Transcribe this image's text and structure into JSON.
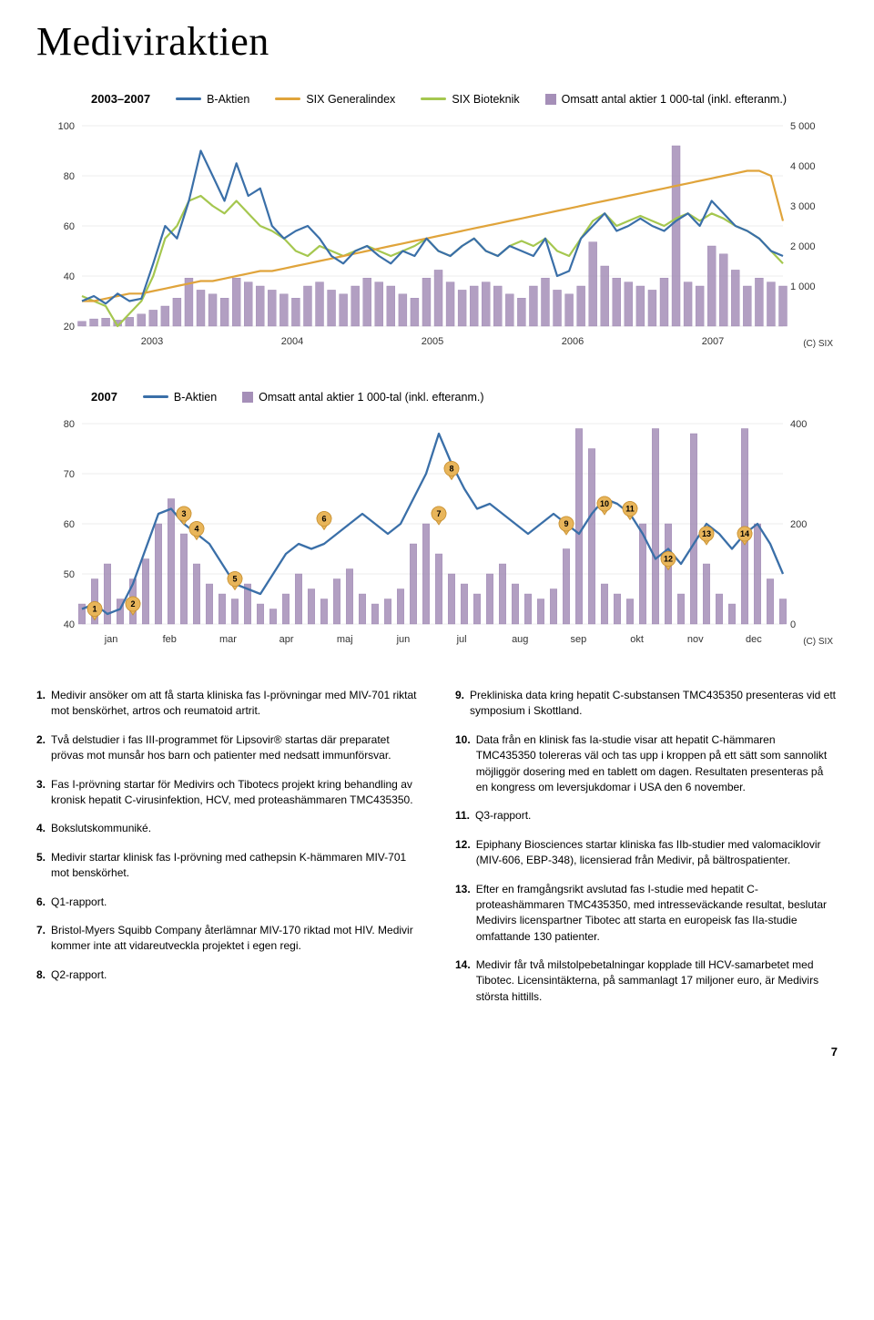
{
  "title": "Mediviraktien",
  "page_number": "7",
  "colors": {
    "bAktien": "#3a6fa8",
    "generalindex": "#e0a43b",
    "bioteknik": "#a5c74f",
    "bars": "#a58fb8",
    "barsStroke": "#8a6fa3",
    "gridline": "#dcdcdc",
    "text": "#222222"
  },
  "chart1": {
    "period_label": "2003–2007",
    "legend": [
      {
        "label": "B-Aktien",
        "type": "line",
        "color": "#3a6fa8"
      },
      {
        "label": "SIX Generalindex",
        "type": "line",
        "color": "#e0a43b"
      },
      {
        "label": "SIX Bioteknik",
        "type": "line",
        "color": "#a5c74f"
      },
      {
        "label": "Omsatt antal aktier 1 000-tal (inkl. efteranm.)",
        "type": "sq",
        "color": "#a58fb8"
      }
    ],
    "xlabels": [
      "2003",
      "2004",
      "2005",
      "2006",
      "2007"
    ],
    "y_left": {
      "min": 20,
      "max": 100,
      "ticks": [
        20,
        40,
        60,
        80,
        100
      ]
    },
    "y_right": {
      "min": 0,
      "max": 5000,
      "ticks": [
        1000,
        2000,
        3000,
        4000,
        5000
      ],
      "tick_labels": [
        "1 000",
        "2 000",
        "3 000",
        "4 000",
        "5 000"
      ]
    },
    "series_bAktien": [
      30,
      32,
      29,
      33,
      30,
      31,
      45,
      60,
      55,
      70,
      90,
      80,
      70,
      85,
      72,
      75,
      60,
      55,
      58,
      60,
      55,
      48,
      45,
      50,
      52,
      48,
      45,
      50,
      48,
      55,
      50,
      48,
      52,
      55,
      50,
      48,
      52,
      50,
      48,
      55,
      40,
      42,
      55,
      60,
      65,
      58,
      60,
      63,
      60,
      58,
      62,
      65,
      60,
      70,
      65,
      60,
      58,
      55,
      50,
      48
    ],
    "series_generalindex": [
      30,
      30,
      31,
      32,
      33,
      33,
      34,
      35,
      36,
      37,
      38,
      38,
      39,
      40,
      41,
      42,
      42,
      43,
      44,
      45,
      46,
      47,
      48,
      49,
      50,
      51,
      52,
      53,
      54,
      55,
      56,
      57,
      58,
      59,
      60,
      61,
      62,
      63,
      64,
      65,
      66,
      67,
      68,
      69,
      70,
      71,
      72,
      73,
      74,
      75,
      76,
      77,
      78,
      79,
      80,
      81,
      82,
      82,
      80,
      62
    ],
    "series_bioteknik": [
      32,
      30,
      28,
      20,
      25,
      30,
      40,
      55,
      60,
      70,
      72,
      68,
      65,
      70,
      65,
      60,
      58,
      55,
      50,
      48,
      52,
      50,
      48,
      50,
      52,
      50,
      48,
      50,
      52,
      55,
      50,
      48,
      52,
      55,
      50,
      48,
      52,
      54,
      52,
      55,
      50,
      48,
      55,
      62,
      65,
      60,
      62,
      64,
      62,
      60,
      63,
      65,
      62,
      65,
      63,
      60,
      58,
      55,
      50,
      45
    ],
    "bars": [
      120,
      180,
      200,
      150,
      220,
      300,
      400,
      500,
      700,
      1200,
      900,
      800,
      700,
      1200,
      1100,
      1000,
      900,
      800,
      700,
      1000,
      1100,
      900,
      800,
      1000,
      1200,
      1100,
      1000,
      800,
      700,
      1200,
      1400,
      1100,
      900,
      1000,
      1100,
      1000,
      800,
      700,
      1000,
      1200,
      900,
      800,
      1000,
      2100,
      1500,
      1200,
      1100,
      1000,
      900,
      1200,
      4500,
      1100,
      1000,
      2000,
      1800,
      1400,
      1000,
      1200,
      1100,
      1000
    ],
    "credit": "(C) SIX"
  },
  "chart2": {
    "period_label": "2007",
    "legend": [
      {
        "label": "B-Aktien",
        "type": "line",
        "color": "#3a6fa8"
      },
      {
        "label": "Omsatt antal aktier 1 000-tal (inkl. efteranm.)",
        "type": "sq",
        "color": "#a58fb8"
      }
    ],
    "y_left": {
      "min": 40,
      "max": 80,
      "ticks": [
        40,
        50,
        60,
        70,
        80
      ]
    },
    "y_right": {
      "min": 0,
      "max": 400,
      "ticks": [
        0,
        200,
        400
      ]
    },
    "xlabels": [
      "jan",
      "feb",
      "mar",
      "apr",
      "maj",
      "jun",
      "jul",
      "aug",
      "sep",
      "okt",
      "nov",
      "dec"
    ],
    "series_bAktien": [
      43,
      44,
      42,
      43,
      48,
      55,
      62,
      63,
      60,
      58,
      56,
      52,
      48,
      47,
      46,
      50,
      54,
      56,
      55,
      56,
      58,
      60,
      62,
      60,
      58,
      60,
      65,
      70,
      78,
      72,
      67,
      63,
      64,
      62,
      60,
      58,
      60,
      62,
      60,
      58,
      62,
      65,
      64,
      62,
      58,
      53,
      55,
      52,
      56,
      60,
      58,
      55,
      58,
      60,
      56,
      50
    ],
    "bars": [
      40,
      90,
      120,
      50,
      90,
      130,
      200,
      250,
      180,
      120,
      80,
      60,
      50,
      80,
      40,
      30,
      60,
      100,
      70,
      50,
      90,
      110,
      60,
      40,
      50,
      70,
      160,
      200,
      140,
      100,
      80,
      60,
      100,
      120,
      80,
      60,
      50,
      70,
      150,
      390,
      350,
      80,
      60,
      50,
      200,
      390,
      200,
      60,
      380,
      120,
      60,
      40,
      390,
      200,
      90,
      50
    ],
    "markers": [
      {
        "n": "1",
        "x": 1,
        "y": 43
      },
      {
        "n": "2",
        "x": 4,
        "y": 44
      },
      {
        "n": "3",
        "x": 8,
        "y": 62
      },
      {
        "n": "4",
        "x": 9,
        "y": 59
      },
      {
        "n": "5",
        "x": 12,
        "y": 49
      },
      {
        "n": "6",
        "x": 19,
        "y": 61
      },
      {
        "n": "7",
        "x": 28,
        "y": 62
      },
      {
        "n": "8",
        "x": 29,
        "y": 71
      },
      {
        "n": "9",
        "x": 38,
        "y": 60
      },
      {
        "n": "10",
        "x": 41,
        "y": 64
      },
      {
        "n": "11",
        "x": 43,
        "y": 63
      },
      {
        "n": "12",
        "x": 46,
        "y": 53
      },
      {
        "n": "13",
        "x": 49,
        "y": 58
      },
      {
        "n": "14",
        "x": 52,
        "y": 58
      }
    ],
    "credit": "(C) SIX"
  },
  "notes_left": [
    {
      "n": "1.",
      "t": "Medivir ansöker om att få starta kliniska fas I-prövningar med MIV-701 riktat mot benskörhet, artros och reumatoid artrit."
    },
    {
      "n": "2.",
      "t": "Två delstudier i fas III-programmet för Lipsovir® startas där preparatet prövas mot munsår hos barn och patienter med nedsatt immunförsvar."
    },
    {
      "n": "3.",
      "t": "Fas I-prövning startar för Medivirs och Tibotecs projekt kring behandling av kronisk hepatit C-virusinfektion, HCV, med proteashämmaren TMC435350."
    },
    {
      "n": "4.",
      "t": "Bokslutskommuniké."
    },
    {
      "n": "5.",
      "t": "Medivir startar klinisk fas I-prövning med cathepsin K-hämmaren MIV-701 mot benskörhet."
    },
    {
      "n": "6.",
      "t": "Q1-rapport."
    },
    {
      "n": "7.",
      "t": "Bristol-Myers Squibb Company återlämnar MIV-170 riktad mot HIV. Medivir kommer inte att vidareutveckla projektet i egen regi."
    },
    {
      "n": "8.",
      "t": "Q2-rapport."
    }
  ],
  "notes_right": [
    {
      "n": "9.",
      "t": "Prekliniska data kring hepatit C-substansen TMC435350 presenteras vid ett symposium i Skottland."
    },
    {
      "n": "10.",
      "t": "Data från en klinisk fas Ia-studie visar att hepatit C-hämmaren TMC435350 tolereras väl och tas upp i kroppen på ett sätt som sannolikt möjliggör dosering med en tablett om dagen. Resultaten presenteras på en kongress om leversjukdomar i USA den 6 november."
    },
    {
      "n": "11.",
      "t": "Q3-rapport."
    },
    {
      "n": "12.",
      "t": "Epiphany Biosciences startar kliniska fas IIb-studier med valomaciklovir (MIV-606, EBP-348), licensierad från Medivir, på bältrospatienter."
    },
    {
      "n": "13.",
      "t": "Efter en framgångsrikt avslutad fas I-studie med hepatit C-proteashämmaren TMC435350, med intresseväckande resultat, beslutar Medivirs licenspartner Tibotec att starta en europeisk fas IIa-studie omfattande 130 patienter."
    },
    {
      "n": "14.",
      "t": "Medivir får två milstolpebetalningar kopplade till HCV-samarbetet med Tibotec. Licensintäkterna, på sammanlagt 17 miljoner euro, är Medivirs största hittills."
    }
  ]
}
